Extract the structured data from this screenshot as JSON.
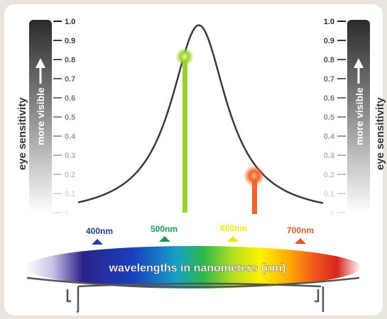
{
  "axis": {
    "label": "eye sensitivity",
    "bar_label": "more visible",
    "ticks": [
      "1.0",
      "0.9",
      "0.8",
      "0.7",
      "0.6",
      "0.5",
      "0.4",
      "0.3",
      "0.2",
      "0.1",
      "0"
    ]
  },
  "wavelength_markers": [
    {
      "label": "400nm",
      "nm": 400,
      "color": "#1c3f9a"
    },
    {
      "label": "500nm",
      "nm": 500,
      "color": "#1a9a55"
    },
    {
      "label": "600nm",
      "nm": 600,
      "color": "#f4e410"
    },
    {
      "label": "700nm",
      "nm": 700,
      "color": "#e2542a"
    }
  ],
  "spectrum_band": {
    "label": "wavelengths in nanometers (nm)"
  },
  "highlighted_points": [
    {
      "name": "green",
      "sensitivity": 0.82,
      "color": "#9bd12f"
    },
    {
      "name": "orange",
      "sensitivity": 0.21,
      "color": "#f0632a"
    }
  ],
  "curve_peak_sensitivity": 1.0
}
